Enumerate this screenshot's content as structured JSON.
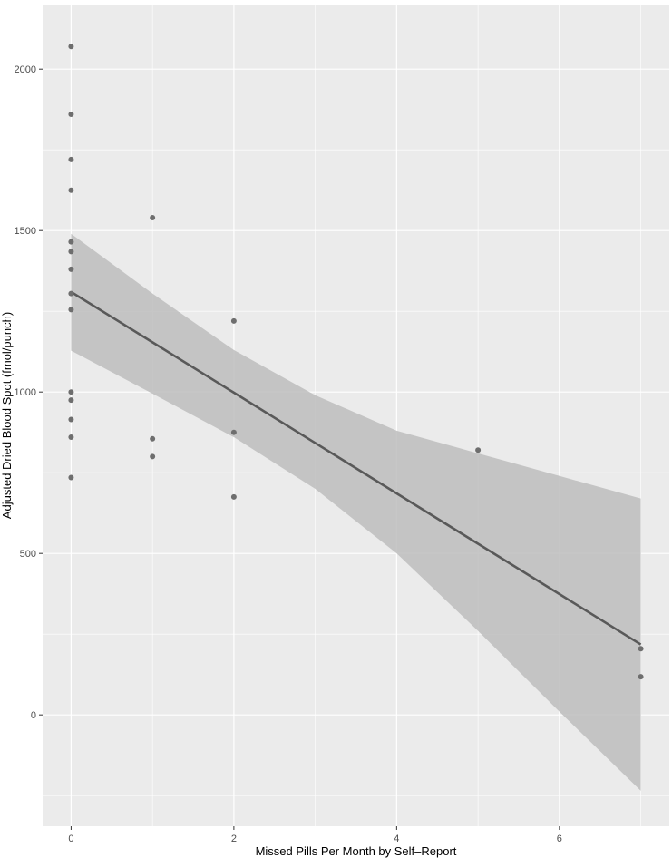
{
  "chart_data": {
    "type": "scatter",
    "title": "",
    "xlabel": "Missed Pills Per Month by Self–Report",
    "ylabel": "Adjusted Dried Blood Spot (fmol/punch)",
    "xlim": [
      -0.35,
      7.35
    ],
    "ylim": [
      -345,
      2200
    ],
    "x_ticks": [
      0,
      2,
      4,
      6
    ],
    "x_tick_labels": [
      "0",
      "2",
      "4",
      "6"
    ],
    "y_ticks": [
      0,
      500,
      1000,
      1500,
      2000
    ],
    "y_tick_labels": [
      "0",
      "500",
      "1000",
      "1500",
      "2000"
    ],
    "grid": true,
    "legend": "none",
    "points": [
      {
        "x": 0,
        "y": 2070
      },
      {
        "x": 0,
        "y": 1860
      },
      {
        "x": 0,
        "y": 1720
      },
      {
        "x": 0,
        "y": 1625
      },
      {
        "x": 0,
        "y": 1465
      },
      {
        "x": 0,
        "y": 1435
      },
      {
        "x": 0,
        "y": 1380
      },
      {
        "x": 0,
        "y": 1305
      },
      {
        "x": 0,
        "y": 1255
      },
      {
        "x": 0,
        "y": 1000
      },
      {
        "x": 0,
        "y": 975
      },
      {
        "x": 0,
        "y": 915
      },
      {
        "x": 0,
        "y": 860
      },
      {
        "x": 0,
        "y": 735
      },
      {
        "x": 1,
        "y": 1540
      },
      {
        "x": 1,
        "y": 855
      },
      {
        "x": 1,
        "y": 800
      },
      {
        "x": 2,
        "y": 1220
      },
      {
        "x": 2,
        "y": 875
      },
      {
        "x": 2,
        "y": 675
      },
      {
        "x": 5,
        "y": 820
      },
      {
        "x": 7,
        "y": 205
      },
      {
        "x": 7,
        "y": 118
      }
    ],
    "regression": {
      "x": [
        0,
        1,
        2,
        3,
        4,
        5,
        6,
        7
      ],
      "fit": [
        1310,
        1154,
        998,
        842,
        686,
        530,
        374,
        218
      ],
      "upper": [
        1490,
        1305,
        1130,
        990,
        880,
        810,
        740,
        670
      ],
      "lower": [
        1128,
        995,
        860,
        700,
        500,
        260,
        10,
        -235
      ]
    },
    "colors": {
      "panel": "#ebebeb",
      "grid_major": "#ffffff",
      "points": "#6e6e6e",
      "line": "#595959",
      "ribbon": "#bdbdbd"
    }
  }
}
